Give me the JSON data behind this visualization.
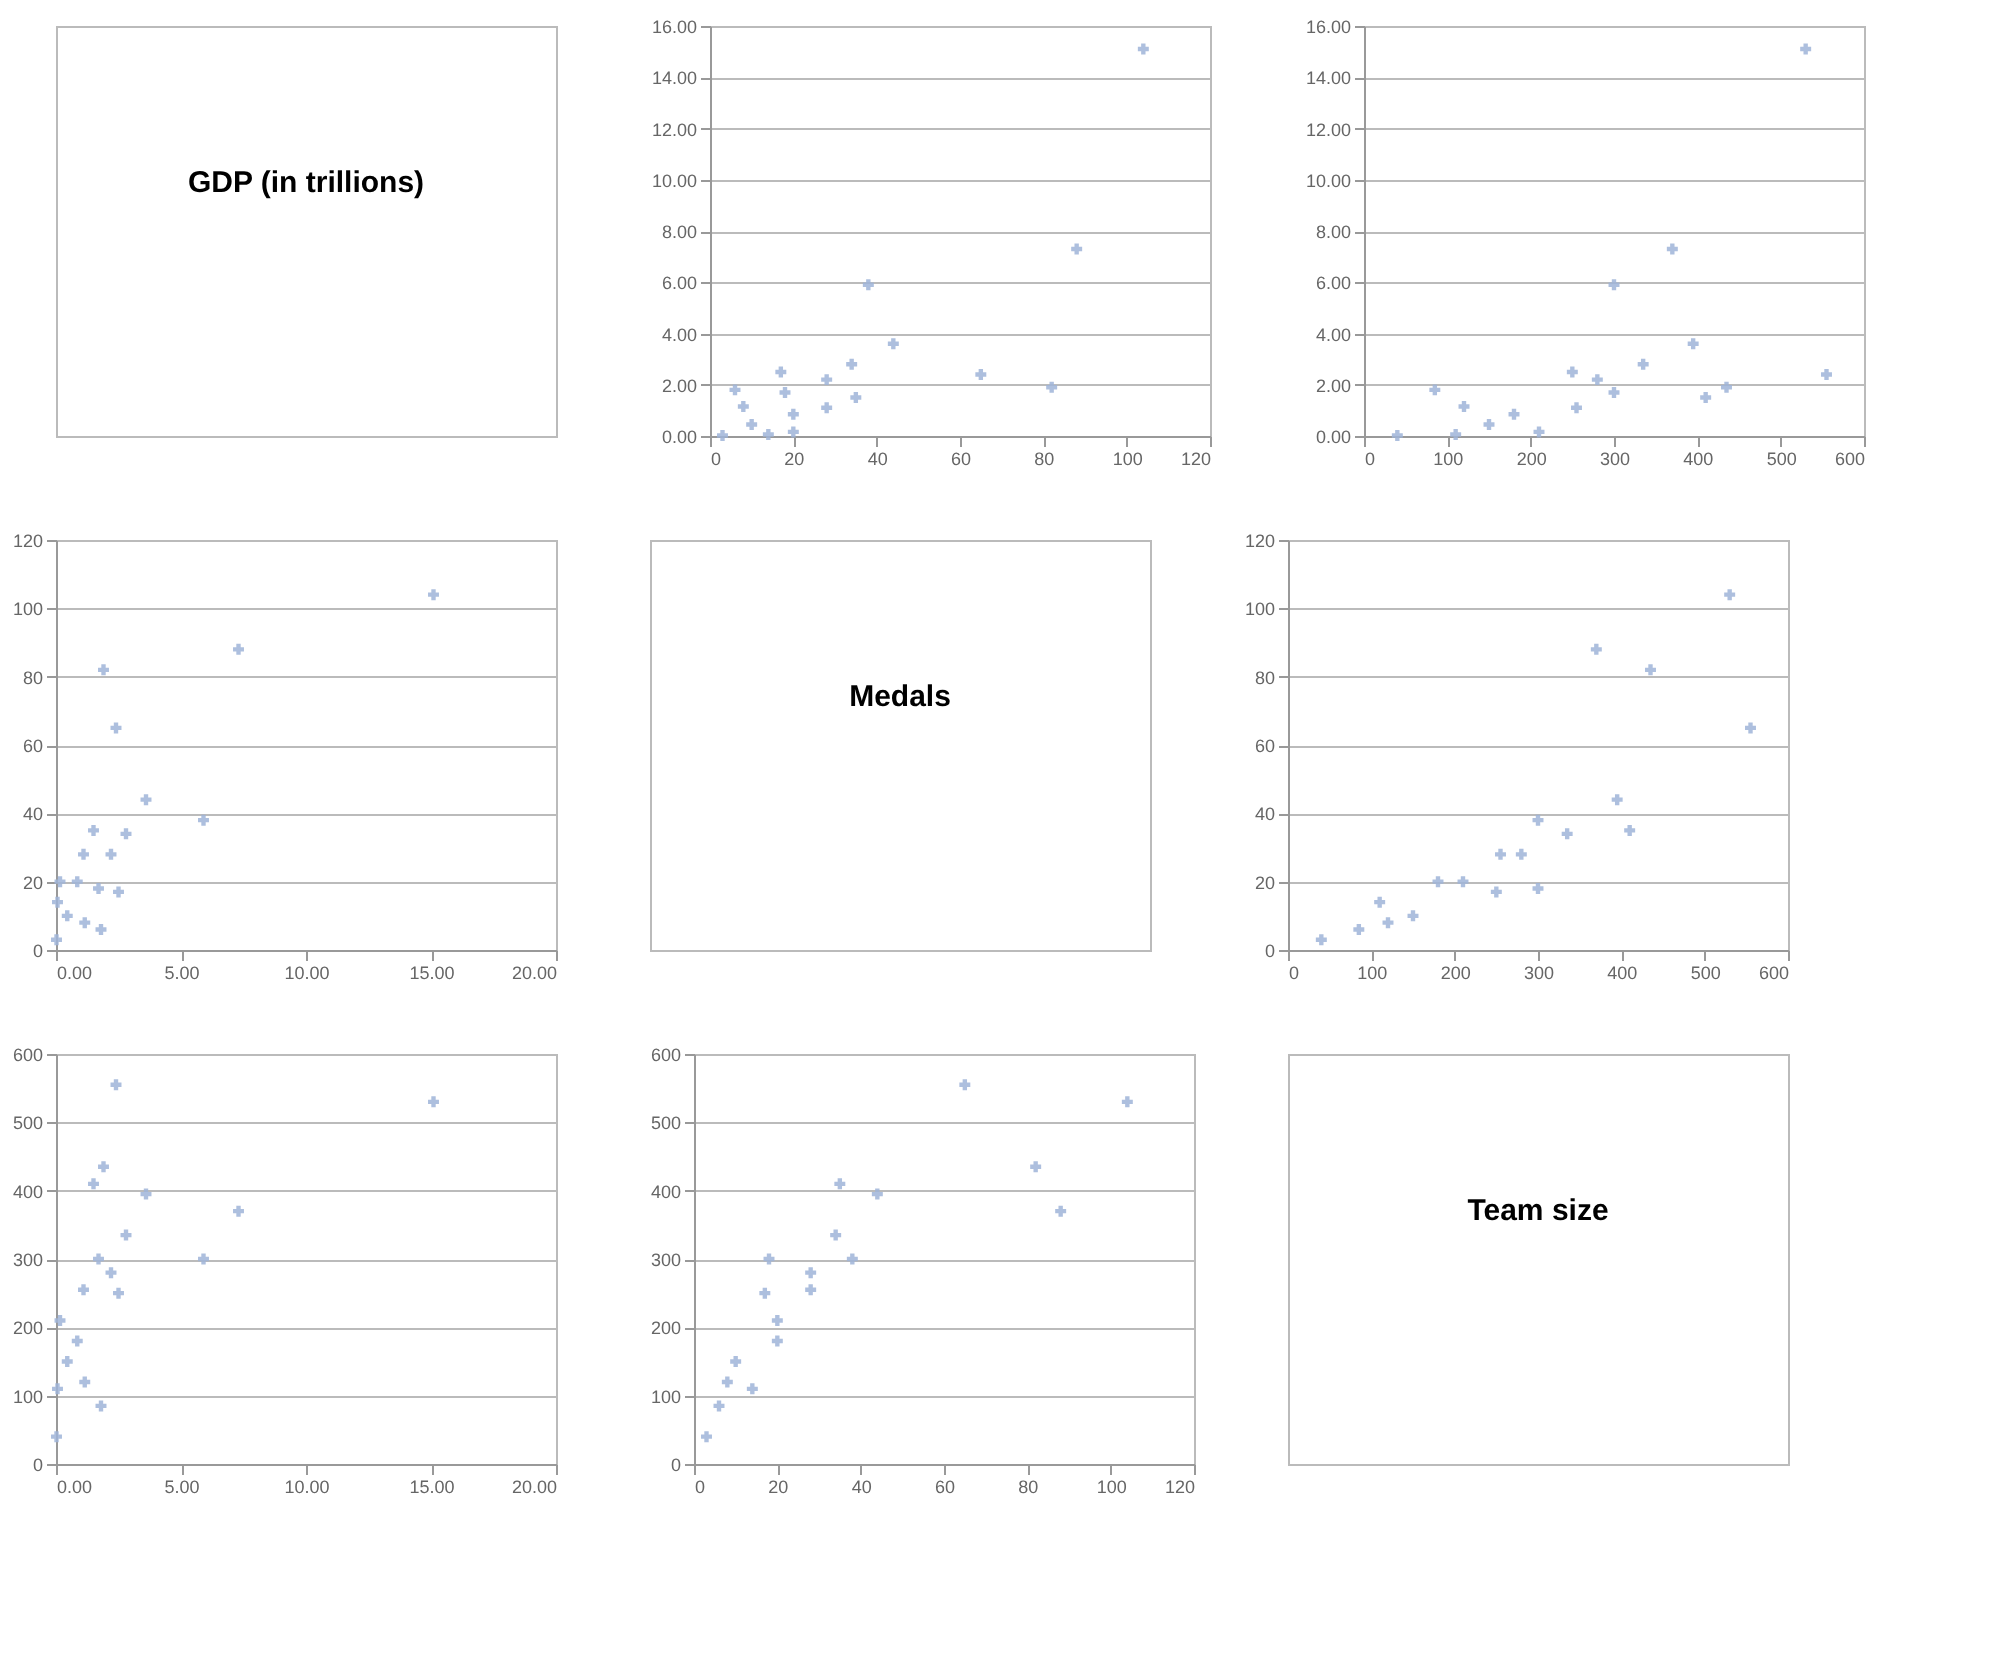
{
  "chart_data": [
    {
      "type": "other",
      "title": "GDP (in trillions)"
    },
    {
      "type": "scatter",
      "marker": "cross",
      "grid": "y",
      "color": "#9fb4d8",
      "x": [
        104,
        88,
        82,
        65,
        44,
        38,
        35,
        34,
        28,
        28,
        20,
        18,
        20,
        17,
        14,
        6,
        8,
        10,
        3
      ],
      "values": [
        15.1,
        7.3,
        1.9,
        2.4,
        3.6,
        5.9,
        1.5,
        2.8,
        1.1,
        2.2,
        0.85,
        1.7,
        0.16,
        2.5,
        0.06,
        1.8,
        1.15,
        0.45,
        0.02
      ],
      "xlim": [
        0,
        120
      ],
      "xticks": [
        0,
        20,
        40,
        60,
        80,
        100,
        120
      ],
      "ylim": [
        0,
        16
      ],
      "yticks": [
        {
          "value": 0,
          "label": "0.00"
        },
        {
          "value": 2,
          "label": "2.00"
        },
        {
          "value": 4,
          "label": "4.00"
        },
        {
          "value": 6,
          "label": "6.00"
        },
        {
          "value": 8,
          "label": "8.00"
        },
        {
          "value": 10,
          "label": "10.00"
        },
        {
          "value": 12,
          "label": "12.00"
        },
        {
          "value": 14,
          "label": "14.00"
        },
        {
          "value": 16,
          "label": "16.00"
        }
      ]
    },
    {
      "type": "scatter",
      "marker": "cross",
      "grid": "y",
      "color": "#9fb4d8",
      "x": [
        530,
        370,
        435,
        555,
        395,
        300,
        410,
        335,
        255,
        280,
        180,
        300,
        210,
        250,
        110,
        85,
        120,
        150,
        40
      ],
      "values": [
        15.1,
        7.3,
        1.9,
        2.4,
        3.6,
        5.9,
        1.5,
        2.8,
        1.1,
        2.2,
        0.85,
        1.7,
        0.16,
        2.5,
        0.06,
        1.8,
        1.15,
        0.45,
        0.02
      ],
      "xlim": [
        0,
        600
      ],
      "xticks": [
        0,
        100,
        200,
        300,
        400,
        500,
        600
      ],
      "ylim": [
        0,
        16
      ],
      "yticks": [
        {
          "value": 0,
          "label": "0.00"
        },
        {
          "value": 2,
          "label": "2.00"
        },
        {
          "value": 4,
          "label": "4.00"
        },
        {
          "value": 6,
          "label": "6.00"
        },
        {
          "value": 8,
          "label": "8.00"
        },
        {
          "value": 10,
          "label": "10.00"
        },
        {
          "value": 12,
          "label": "12.00"
        },
        {
          "value": 14,
          "label": "14.00"
        },
        {
          "value": 16,
          "label": "16.00"
        }
      ]
    },
    {
      "type": "scatter",
      "marker": "cross",
      "grid": "y",
      "color": "#9fb4d8",
      "x": [
        15.1,
        7.3,
        1.9,
        2.4,
        3.6,
        5.9,
        1.5,
        2.8,
        1.1,
        2.2,
        0.85,
        1.7,
        0.16,
        2.5,
        0.06,
        1.8,
        1.15,
        0.45,
        0.02
      ],
      "values": [
        104,
        88,
        82,
        65,
        44,
        38,
        35,
        34,
        28,
        28,
        20,
        18,
        20,
        17,
        14,
        6,
        8,
        10,
        3
      ],
      "xlim": [
        0,
        20
      ],
      "xticks": [
        {
          "value": 0,
          "label": "0.00"
        },
        {
          "value": 5,
          "label": "5.00"
        },
        {
          "value": 10,
          "label": "10.00"
        },
        {
          "value": 15,
          "label": "15.00"
        },
        {
          "value": 20,
          "label": "20.00"
        }
      ],
      "ylim": [
        0,
        120
      ],
      "yticks": [
        0,
        20,
        40,
        60,
        80,
        100,
        120
      ]
    },
    {
      "type": "other",
      "title": "Medals"
    },
    {
      "type": "scatter",
      "marker": "cross",
      "grid": "y",
      "color": "#9fb4d8",
      "x": [
        530,
        370,
        435,
        555,
        395,
        300,
        410,
        335,
        255,
        280,
        180,
        300,
        210,
        250,
        110,
        85,
        120,
        150,
        40
      ],
      "values": [
        104,
        88,
        82,
        65,
        44,
        38,
        35,
        34,
        28,
        28,
        20,
        18,
        20,
        17,
        14,
        6,
        8,
        10,
        3
      ],
      "xlim": [
        0,
        600
      ],
      "xticks": [
        0,
        100,
        200,
        300,
        400,
        500,
        600
      ],
      "ylim": [
        0,
        120
      ],
      "yticks": [
        0,
        20,
        40,
        60,
        80,
        100,
        120
      ]
    },
    {
      "type": "scatter",
      "marker": "cross",
      "grid": "y",
      "color": "#9fb4d8",
      "x": [
        15.1,
        7.3,
        1.9,
        2.4,
        3.6,
        5.9,
        1.5,
        2.8,
        1.1,
        2.2,
        0.85,
        1.7,
        0.16,
        2.5,
        0.06,
        1.8,
        1.15,
        0.45,
        0.02
      ],
      "values": [
        530,
        370,
        435,
        555,
        395,
        300,
        410,
        335,
        255,
        280,
        180,
        300,
        210,
        250,
        110,
        85,
        120,
        150,
        40
      ],
      "xlim": [
        0,
        20
      ],
      "xticks": [
        {
          "value": 0,
          "label": "0.00"
        },
        {
          "value": 5,
          "label": "5.00"
        },
        {
          "value": 10,
          "label": "10.00"
        },
        {
          "value": 15,
          "label": "15.00"
        },
        {
          "value": 20,
          "label": "20.00"
        }
      ],
      "ylim": [
        0,
        600
      ],
      "yticks": [
        0,
        100,
        200,
        300,
        400,
        500,
        600
      ]
    },
    {
      "type": "scatter",
      "marker": "cross",
      "grid": "y",
      "color": "#9fb4d8",
      "x": [
        104,
        88,
        82,
        65,
        44,
        38,
        35,
        34,
        28,
        28,
        20,
        18,
        20,
        17,
        14,
        6,
        8,
        10,
        3
      ],
      "values": [
        530,
        370,
        435,
        555,
        395,
        300,
        410,
        335,
        255,
        280,
        180,
        300,
        210,
        250,
        110,
        85,
        120,
        150,
        40
      ],
      "xlim": [
        0,
        120
      ],
      "xticks": [
        0,
        20,
        40,
        60,
        80,
        100,
        120
      ],
      "ylim": [
        0,
        600
      ],
      "yticks": [
        0,
        100,
        200,
        300,
        400,
        500,
        600
      ]
    },
    {
      "type": "other",
      "title": "Team size"
    }
  ]
}
